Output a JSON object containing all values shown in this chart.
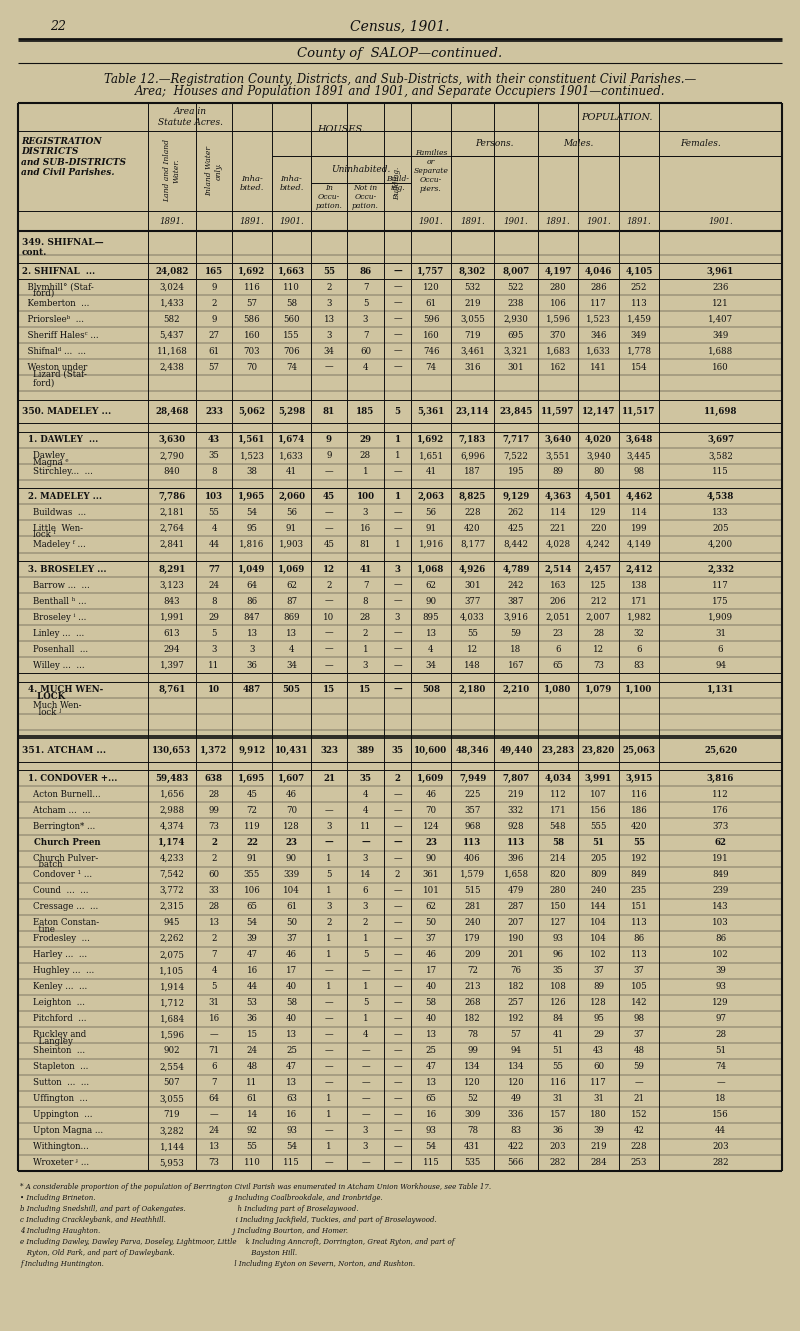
{
  "bg_color": "#cfc4a0",
  "text_color": "#111111",
  "page_num": "22",
  "rows": [
    [
      "349. SHIFNAL—",
      "cont.",
      "",
      "",
      "",
      "",
      "",
      "",
      "",
      "",
      "",
      "",
      "",
      "",
      ""
    ],
    [
      "",
      "",
      "",
      "",
      "",
      "",
      "",
      "",
      "",
      "",
      "",
      "",
      "",
      "",
      ""
    ],
    [
      "2. SHIFNAL  ...",
      "",
      "24,082",
      "165",
      "1,692",
      "1,663",
      "55",
      "86",
      "—",
      "1,757",
      "8,302",
      "8,007",
      "4,197",
      "4,046",
      "4,105",
      "3,961"
    ],
    [
      "  Blymhill° (Staf-",
      "    ford)",
      "3,024",
      "9",
      "116",
      "110",
      "2",
      "7",
      "—",
      "120",
      "532",
      "522",
      "280",
      "286",
      "252",
      "236"
    ],
    [
      "  Kemberton  ...",
      "",
      "1,433",
      "2",
      "57",
      "58",
      "3",
      "5",
      "—",
      "61",
      "219",
      "238",
      "106",
      "117",
      "113",
      "121"
    ],
    [
      "  Priorsleeᵇ  ...",
      "",
      "582",
      "9",
      "586",
      "560",
      "13",
      "3",
      "—",
      "596",
      "3,055",
      "2,930",
      "1,596",
      "1,523",
      "1,459",
      "1,407"
    ],
    [
      "  Sheriff Halesᶜ ...",
      "",
      "5,437",
      "27",
      "160",
      "155",
      "3",
      "7",
      "—",
      "160",
      "719",
      "695",
      "370",
      "346",
      "349",
      "349"
    ],
    [
      "  Shifnalᵈ ...  ...",
      "",
      "11,168",
      "61",
      "703",
      "706",
      "34",
      "60",
      "—",
      "746",
      "3,461",
      "3,321",
      "1,683",
      "1,633",
      "1,778",
      "1,688"
    ],
    [
      "  Weston under",
      "    Lizard (Staf-",
      "2,438",
      "57",
      "70",
      "74",
      "—",
      "4",
      "—",
      "74",
      "316",
      "301",
      "162",
      "141",
      "154",
      "160"
    ],
    [
      "    ford)",
      "",
      "",
      "",
      "",
      "",
      "",
      "",
      "",
      "",
      "",
      "",
      "",
      "",
      "",
      ""
    ],
    [
      "",
      "",
      "",
      "",
      "",
      "",
      "",
      "",
      "",
      "",
      "",
      "",
      "",
      "",
      ""
    ],
    [
      "350. MADELEY ...",
      "",
      "28,468",
      "233",
      "5,062",
      "5,298",
      "81",
      "185",
      "5",
      "5,361",
      "23,114",
      "23,845",
      "11,597",
      "12,147",
      "11,517",
      "11,698"
    ],
    [
      "",
      "",
      "",
      "",
      "",
      "",
      "",
      "",
      "",
      "",
      "",
      "",
      "",
      "",
      ""
    ],
    [
      "  1. DAWLEY  ...",
      "",
      "3,630",
      "43",
      "1,561",
      "1,674",
      "9",
      "29",
      "1",
      "1,692",
      "7,183",
      "7,717",
      "3,640",
      "4,020",
      "3,648",
      "3,697"
    ],
    [
      "    Dawley",
      "    Magna ᵉ",
      "2,790",
      "35",
      "1,523",
      "1,633",
      "9",
      "28",
      "1",
      "1,651",
      "6,996",
      "7,522",
      "3,551",
      "3,940",
      "3,445",
      "3,582"
    ],
    [
      "    Stirchley...  ...",
      "",
      "840",
      "8",
      "38",
      "41",
      "—",
      "1",
      "—",
      "41",
      "187",
      "195",
      "89",
      "80",
      "98",
      "115"
    ],
    [
      "",
      "",
      "",
      "",
      "",
      "",
      "",
      "",
      "",
      "",
      "",
      "",
      "",
      "",
      ""
    ],
    [
      "  2. MADELEY ...",
      "",
      "7,786",
      "103",
      "1,965",
      "2,060",
      "45",
      "100",
      "1",
      "2,063",
      "8,825",
      "9,129",
      "4,363",
      "4,501",
      "4,462",
      "4,538"
    ],
    [
      "    Buildwas  ...",
      "",
      "2,181",
      "55",
      "54",
      "56",
      "—",
      "3",
      "—",
      "56",
      "228",
      "262",
      "114",
      "129",
      "114",
      "133"
    ],
    [
      "    Little  Wen-",
      "    lock ᶠ",
      "2,764",
      "4",
      "95",
      "91",
      "—",
      "16",
      "—",
      "91",
      "420",
      "425",
      "221",
      "220",
      "199",
      "205"
    ],
    [
      "    Madeley ᶠ ...",
      "",
      "2,841",
      "44",
      "1,816",
      "1,903",
      "45",
      "81",
      "1",
      "1,916",
      "8,177",
      "8,442",
      "4,028",
      "4,242",
      "4,149",
      "4,200"
    ],
    [
      "",
      "",
      "",
      "",
      "",
      "",
      "",
      "",
      "",
      "",
      "",
      "",
      "",
      "",
      ""
    ],
    [
      "  3. BROSELEY ...",
      "",
      "8,291",
      "77",
      "1,049",
      "1,069",
      "12",
      "41",
      "3",
      "1,068",
      "4,926",
      "4,789",
      "2,514",
      "2,457",
      "2,412",
      "2,332"
    ],
    [
      "    Barrow ...  ...",
      "",
      "3,123",
      "24",
      "64",
      "62",
      "2",
      "7",
      "—",
      "62",
      "301",
      "242",
      "163",
      "125",
      "138",
      "117"
    ],
    [
      "    Benthall ʰ ...",
      "",
      "843",
      "8",
      "86",
      "87",
      "—",
      "8",
      "—",
      "90",
      "377",
      "387",
      "206",
      "212",
      "171",
      "175"
    ],
    [
      "    Broseley ⁱ ...",
      "",
      "1,991",
      "29",
      "847",
      "869",
      "10",
      "28",
      "3",
      "895",
      "4,033",
      "3,916",
      "2,051",
      "2,007",
      "1,982",
      "1,909"
    ],
    [
      "    Linley ...  ...",
      "",
      "613",
      "5",
      "13",
      "13",
      "—",
      "2",
      "—",
      "13",
      "55",
      "59",
      "23",
      "28",
      "32",
      "31"
    ],
    [
      "    Posenhall  ...",
      "",
      "294",
      "3",
      "3",
      "4",
      "—",
      "1",
      "—",
      "4",
      "12",
      "18",
      "6",
      "12",
      "6",
      "6"
    ],
    [
      "    Willey ...  ...",
      "",
      "1,397",
      "11",
      "36",
      "34",
      "—",
      "3",
      "—",
      "34",
      "148",
      "167",
      "65",
      "73",
      "83",
      "94"
    ],
    [
      "",
      "",
      "",
      "",
      "",
      "",
      "",
      "",
      "",
      "",
      "",
      "",
      "",
      "",
      ""
    ],
    [
      "  4. MUCH WEN-",
      "     LOCK",
      "8,761",
      "10",
      "487",
      "505",
      "15",
      "15",
      "—",
      "508",
      "2,180",
      "2,210",
      "1,080",
      "1,079",
      "1,100",
      "1,131"
    ],
    [
      "    Much Wen-",
      "      lock ʲ",
      "",
      "",
      "",
      "",
      "",
      "",
      "",
      "",
      "",
      "",
      "",
      "",
      "",
      ""
    ],
    [
      "",
      "",
      "",
      "",
      "",
      "",
      "",
      "",
      "",
      "",
      "",
      "",
      "",
      "",
      ""
    ],
    [
      "",
      "",
      "",
      "",
      "",
      "",
      "",
      "",
      "",
      "",
      "",
      "",
      "",
      "",
      ""
    ],
    [
      "351. ATCHAM ...",
      "",
      "130,653",
      "1,372",
      "9,912",
      "10,431",
      "323",
      "389",
      "35",
      "10,600",
      "48,346",
      "49,440",
      "23,283",
      "23,820",
      "25,063",
      "25,620"
    ],
    [
      "",
      "",
      "",
      "",
      "",
      "",
      "",
      "",
      "",
      "",
      "",
      "",
      "",
      "",
      ""
    ],
    [
      "  1. CONDOVER +...",
      "",
      "59,483",
      "638",
      "1,695",
      "1,607",
      "21",
      "35",
      "2",
      "1,609",
      "7,949",
      "7,807",
      "4,034",
      "3,991",
      "3,915",
      "3,816"
    ],
    [
      "    Acton Burnell...",
      "",
      "1,656",
      "28",
      "45",
      "46",
      "",
      "4",
      "—",
      "46",
      "225",
      "219",
      "112",
      "107",
      "116",
      "112"
    ],
    [
      "    Atcham ...  ...",
      "",
      "2,988",
      "99",
      "72",
      "70",
      "—",
      "4",
      "—",
      "70",
      "357",
      "332",
      "171",
      "156",
      "186",
      "176"
    ],
    [
      "    Berrington* ...",
      "",
      "4,374",
      "73",
      "119",
      "128",
      "3",
      "11",
      "—",
      "124",
      "968",
      "928",
      "548",
      "555",
      "420",
      "373"
    ],
    [
      "    Church Preen",
      "",
      "1,174",
      "2",
      "22",
      "23",
      "—",
      "—",
      "—",
      "23",
      "113",
      "113",
      "58",
      "51",
      "55",
      "62"
    ],
    [
      "    Church Pulver-",
      "      batch",
      "4,233",
      "2",
      "91",
      "90",
      "1",
      "3",
      "—",
      "90",
      "406",
      "396",
      "214",
      "205",
      "192",
      "191"
    ],
    [
      "    Condover ¹ ...",
      "",
      "7,542",
      "60",
      "355",
      "339",
      "5",
      "14",
      "2",
      "361",
      "1,579",
      "1,658",
      "820",
      "809",
      "849",
      "849"
    ],
    [
      "    Cound  ...  ...",
      "",
      "3,772",
      "33",
      "106",
      "104",
      "1",
      "6",
      "—",
      "101",
      "515",
      "479",
      "280",
      "240",
      "235",
      "239"
    ],
    [
      "    Cressage ...  ...",
      "",
      "2,315",
      "28",
      "65",
      "61",
      "3",
      "3",
      "—",
      "62",
      "281",
      "287",
      "150",
      "144",
      "151",
      "143"
    ],
    [
      "    Eaton Constan-",
      "      tine",
      "945",
      "13",
      "54",
      "50",
      "2",
      "2",
      "—",
      "50",
      "240",
      "207",
      "127",
      "104",
      "113",
      "103"
    ],
    [
      "    Frodesley  ...",
      "",
      "2,262",
      "2",
      "39",
      "37",
      "1",
      "1",
      "—",
      "37",
      "179",
      "190",
      "93",
      "104",
      "86",
      "86"
    ],
    [
      "    Harley ...  ...",
      "",
      "2,075",
      "7",
      "47",
      "46",
      "1",
      "5",
      "—",
      "46",
      "209",
      "201",
      "96",
      "102",
      "113",
      "102"
    ],
    [
      "    Hughley ...  ...",
      "",
      "1,105",
      "4",
      "16",
      "17",
      "—",
      "—",
      "—",
      "17",
      "72",
      "76",
      "35",
      "37",
      "37",
      "39"
    ],
    [
      "    Kenley ...  ...",
      "",
      "1,914",
      "5",
      "44",
      "40",
      "1",
      "1",
      "—",
      "40",
      "213",
      "182",
      "108",
      "89",
      "105",
      "93"
    ],
    [
      "    Leighton  ...",
      "",
      "1,712",
      "31",
      "53",
      "58",
      "—",
      "5",
      "—",
      "58",
      "268",
      "257",
      "126",
      "128",
      "142",
      "129"
    ],
    [
      "    Pitchford  ...",
      "",
      "1,684",
      "16",
      "36",
      "40",
      "—",
      "1",
      "—",
      "40",
      "182",
      "192",
      "84",
      "95",
      "98",
      "97"
    ],
    [
      "    Ruckley and",
      "      Langley",
      "1,596",
      "—",
      "15",
      "13",
      "—",
      "4",
      "—",
      "13",
      "78",
      "57",
      "41",
      "29",
      "37",
      "28"
    ],
    [
      "    Sheinton  ...",
      "",
      "902",
      "71",
      "24",
      "25",
      "—",
      "—",
      "—",
      "25",
      "99",
      "94",
      "51",
      "43",
      "48",
      "51"
    ],
    [
      "    Stapleton  ...",
      "",
      "2,554",
      "6",
      "48",
      "47",
      "—",
      "—",
      "—",
      "47",
      "134",
      "134",
      "55",
      "60",
      "59",
      "74"
    ],
    [
      "    Sutton  ...  ...",
      "",
      "507",
      "7",
      "11",
      "13",
      "—",
      "—",
      "—",
      "13",
      "120",
      "120",
      "116",
      "117",
      "—",
      "—"
    ],
    [
      "    Uffington  ...",
      "",
      "3,055",
      "64",
      "61",
      "63",
      "1",
      "—",
      "—",
      "65",
      "52",
      "49",
      "31",
      "31",
      "21",
      "18"
    ],
    [
      "    Uppington  ...",
      "",
      "719",
      "—",
      "14",
      "16",
      "1",
      "—",
      "—",
      "16",
      "309",
      "336",
      "157",
      "180",
      "152",
      "156"
    ],
    [
      "    Upton Magna ...",
      "",
      "3,282",
      "24",
      "92",
      "93",
      "—",
      "3",
      "—",
      "93",
      "78",
      "83",
      "36",
      "39",
      "42",
      "44"
    ],
    [
      "    Withington...",
      "",
      "1,144",
      "13",
      "55",
      "54",
      "1",
      "3",
      "—",
      "54",
      "431",
      "422",
      "203",
      "219",
      "228",
      "203"
    ],
    [
      "    Wroxeter ᶡ ...",
      "",
      "5,953",
      "73",
      "110",
      "115",
      "—",
      "—",
      "—",
      "115",
      "535",
      "566",
      "282",
      "284",
      "253",
      "282"
    ]
  ],
  "bold_rows": [
    0,
    2,
    11,
    13,
    17,
    22,
    30,
    34,
    36,
    40
  ],
  "section_rows": [
    0,
    11,
    34
  ],
  "spacer_rows": [
    1,
    10,
    12,
    16,
    21,
    29,
    33,
    35
  ],
  "footnotes": [
    "* A considerable proportion of the population of Berrington Civil Parish was enumerated in Atcham Union Workhouse, see Table 17.",
    "• Including Brineton.                                                           g Including Coalbrookdale, and Ironbridge.",
    "b Including Snedshill, and part of Oakengates.                       h Including part of Broselaywood.",
    "c Including Crackleybank, and Heathhill.                               i Including Jackfield, Tuckies, and part of Broselaywood.",
    "4 Including Haughton.                                                           j Including Bourton, and Homer.",
    "e Including Dawley, Dawley Parva, Doseley, Lightmoor, Little    k Including Anncroft, Dorrington, Great Ryton, and part of",
    "   Ryton, Old Park, and part of Dawleybank.                                  Bayston Hill.",
    "f Including Huntington.                                                          l Including Eyton on Severn, Norton, and Rushton."
  ]
}
